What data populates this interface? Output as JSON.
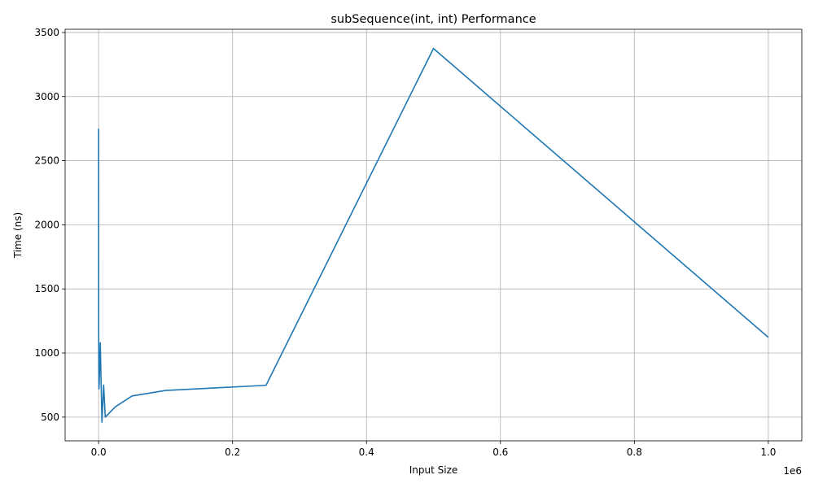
{
  "chart_data": {
    "type": "line",
    "title": "subSequence(int, int) Performance",
    "xlabel": "Input Size",
    "ylabel": "Time (ns)",
    "x_offset_label": "1e6",
    "xlim": [
      -50000,
      1050000
    ],
    "ylim": [
      315,
      3525
    ],
    "x_ticks": [
      0,
      200000,
      400000,
      600000,
      800000,
      1000000
    ],
    "x_tick_labels": [
      "0.0",
      "0.2",
      "0.4",
      "0.6",
      "0.8",
      "1.0"
    ],
    "y_ticks": [
      500,
      1000,
      1500,
      2000,
      2500,
      3000,
      3500
    ],
    "y_tick_labels": [
      "500",
      "1000",
      "1500",
      "2000",
      "2500",
      "3000",
      "3500"
    ],
    "grid": true,
    "series": [
      {
        "color": "#1f77b4",
        "x": [
          10,
          25,
          50,
          100,
          250,
          500,
          1000,
          2500,
          5000,
          7500,
          10000,
          25000,
          50000,
          100000,
          250000,
          500000,
          1000000
        ],
        "y": [
          2750,
          2300,
          1800,
          1200,
          900,
          720,
          780,
          1080,
          460,
          750,
          500,
          580,
          665,
          708,
          748,
          3375,
          1122
        ]
      }
    ]
  }
}
